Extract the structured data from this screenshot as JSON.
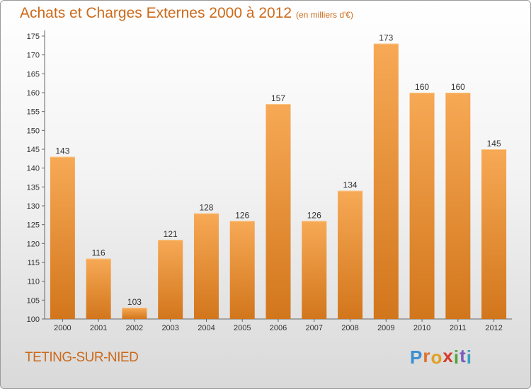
{
  "header": {
    "title": "Achats et Charges Externes 2000 à 2012",
    "unit": "(en milliers d'€)"
  },
  "footer": {
    "commune": "TETING-SUR-NIED",
    "logo_letters": [
      "P",
      "r",
      "o",
      "x",
      "i",
      "t",
      "i"
    ],
    "logo_colors": [
      "#3a8fd0",
      "#e0702a",
      "#e0a020",
      "#d33a2a",
      "#4ca63a",
      "#7a5bbf",
      "#3aa0c0"
    ]
  },
  "colors": {
    "bar_top": "#f7a955",
    "bar_bottom": "#d2761c",
    "accent": "#cc6a1a"
  },
  "chart_data": {
    "type": "bar",
    "title": "Achats et Charges Externes 2000 à 2012",
    "subtitle": "(en milliers d'€)",
    "categories": [
      "2000",
      "2001",
      "2002",
      "2003",
      "2004",
      "2005",
      "2006",
      "2007",
      "2008",
      "2009",
      "2010",
      "2011",
      "2012"
    ],
    "values": [
      143,
      116,
      103,
      121,
      128,
      126,
      157,
      126,
      134,
      173,
      160,
      160,
      145
    ],
    "ylim": [
      100,
      175
    ],
    "yticks": [
      100,
      105,
      110,
      115,
      120,
      125,
      130,
      135,
      140,
      145,
      150,
      155,
      160,
      165,
      170,
      175
    ],
    "grid": false,
    "legend": "none"
  }
}
